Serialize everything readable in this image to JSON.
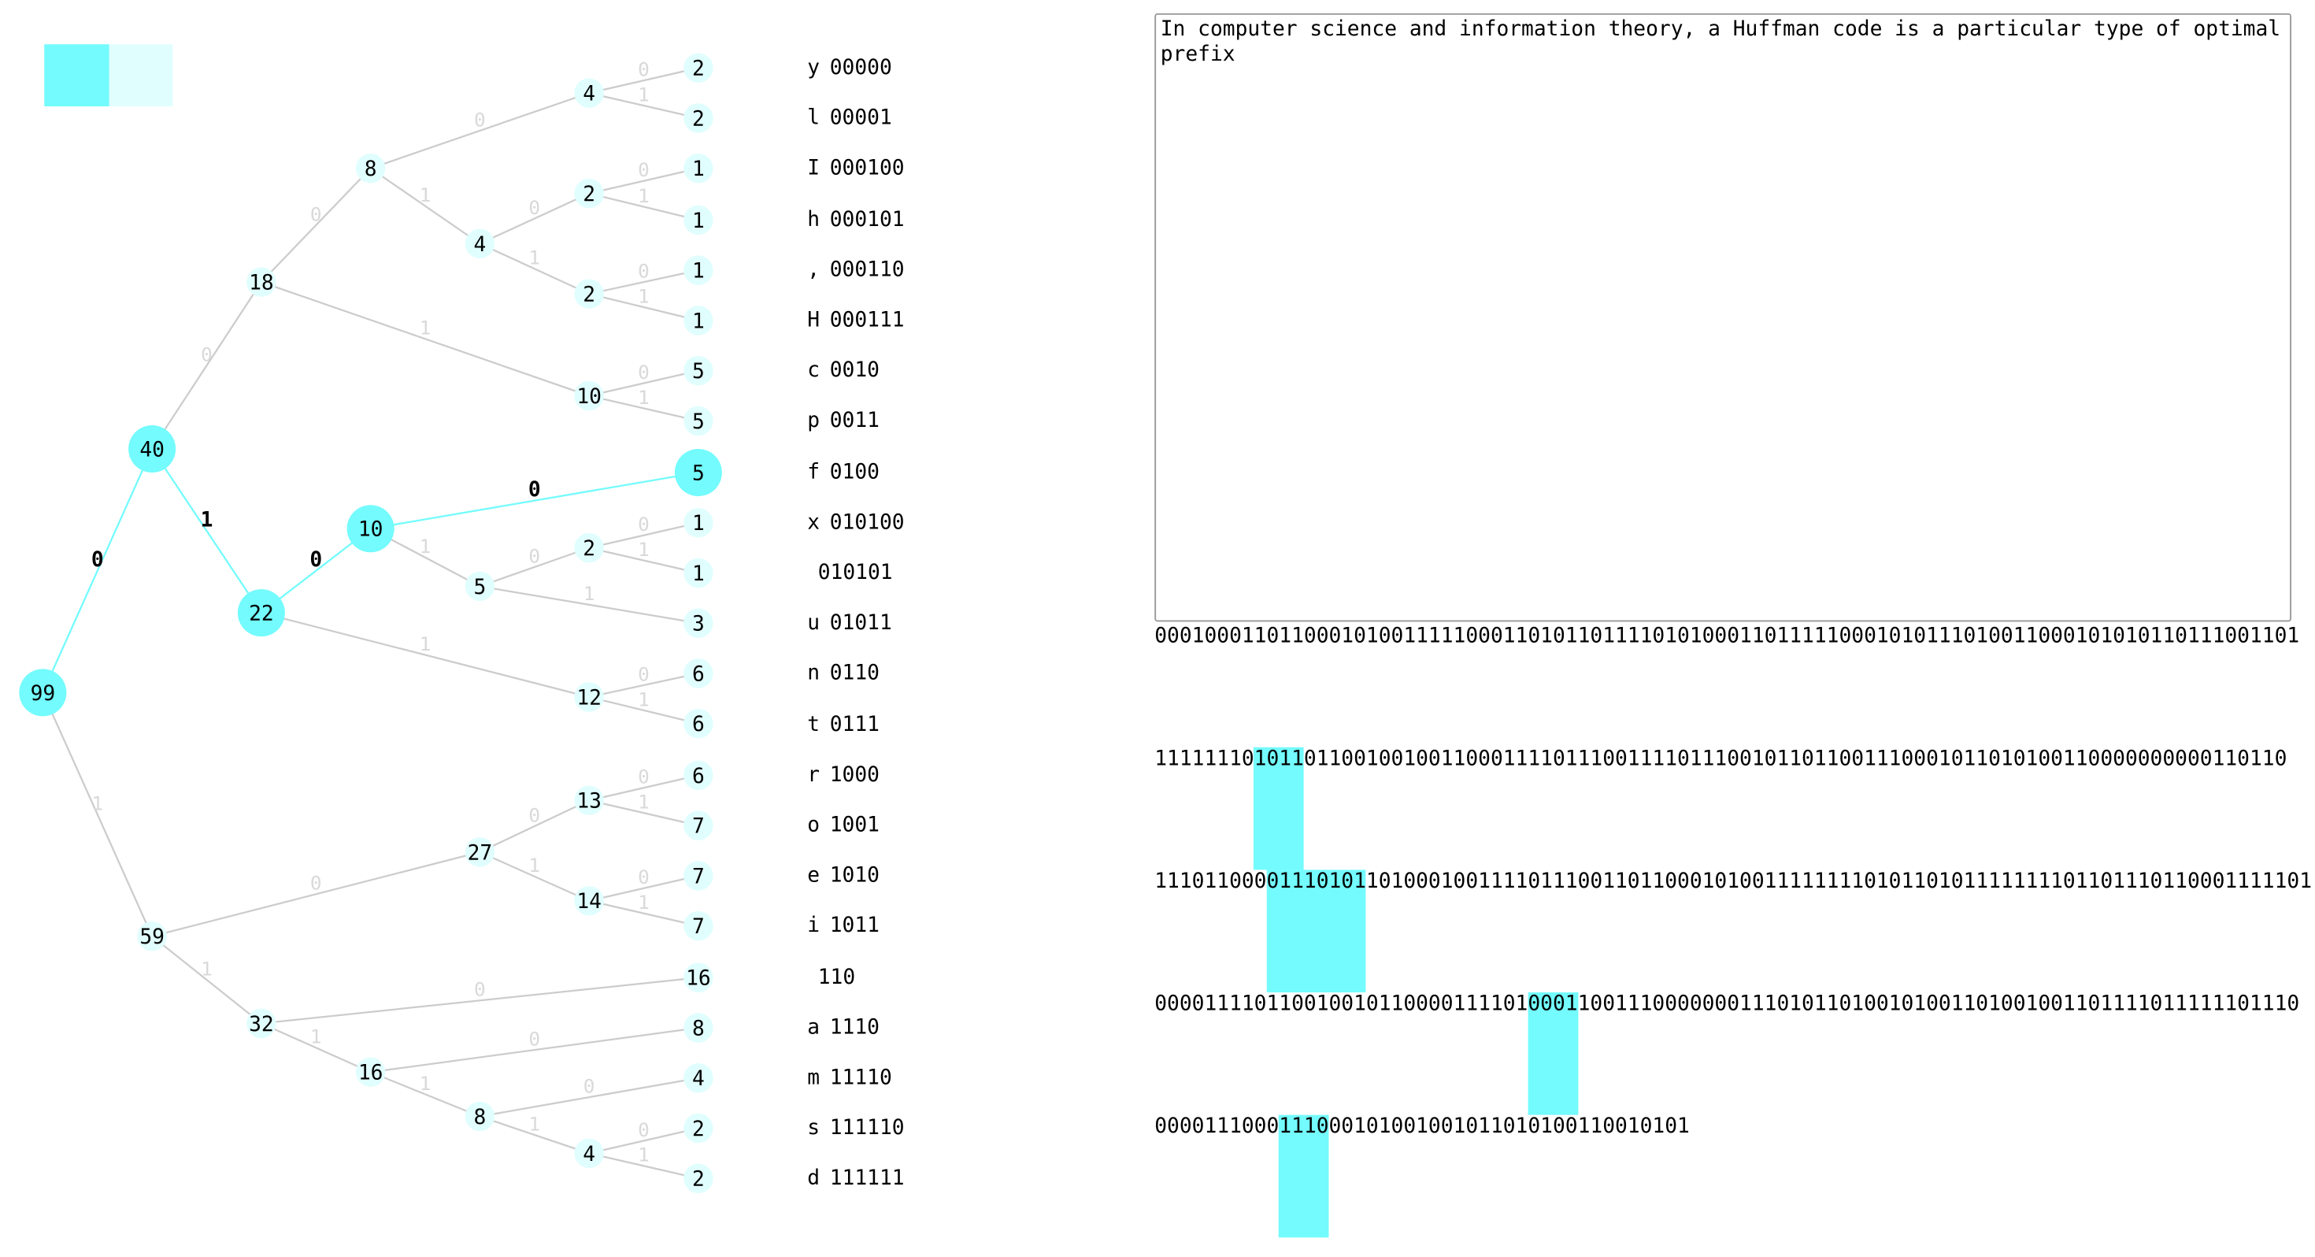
{
  "colors": {
    "accent": "#73fbfd",
    "accent_light": "#e1fefe",
    "edge_idle": "#cccccc",
    "edge_label_idle": "#d9d9d9",
    "text": "#000000"
  },
  "legend": {
    "swatches": [
      "#73fbfd",
      "#e1fefe"
    ]
  },
  "tree": {
    "nodes": [
      {
        "id": "n99",
        "label": "99",
        "active": true
      },
      {
        "id": "n40",
        "label": "40",
        "active": true
      },
      {
        "id": "n59",
        "label": "59",
        "active": false
      },
      {
        "id": "n18",
        "label": "18",
        "active": false
      },
      {
        "id": "n22",
        "label": "22",
        "active": true
      },
      {
        "id": "n8a",
        "label": "8",
        "active": false
      },
      {
        "id": "n10a",
        "label": "10",
        "active": false
      },
      {
        "id": "n10b",
        "label": "10",
        "active": true
      },
      {
        "id": "n12",
        "label": "12",
        "active": false
      },
      {
        "id": "n4a",
        "label": "4",
        "active": false
      },
      {
        "id": "n4b",
        "label": "4",
        "active": false
      },
      {
        "id": "n2a",
        "label": "2",
        "active": false
      },
      {
        "id": "n2b",
        "label": "2",
        "active": false
      },
      {
        "id": "n5a",
        "label": "5",
        "active": false
      },
      {
        "id": "n2c",
        "label": "2",
        "active": false
      },
      {
        "id": "n27",
        "label": "27",
        "active": false
      },
      {
        "id": "n32",
        "label": "32",
        "active": false
      },
      {
        "id": "n13",
        "label": "13",
        "active": false
      },
      {
        "id": "n14",
        "label": "14",
        "active": false
      },
      {
        "id": "n16a",
        "label": "16",
        "active": false
      },
      {
        "id": "n8b",
        "label": "8",
        "active": false
      },
      {
        "id": "n4c",
        "label": "4",
        "active": false
      },
      {
        "id": "l_y",
        "label": "2",
        "active": false
      },
      {
        "id": "l_l",
        "label": "2",
        "active": false
      },
      {
        "id": "l_I",
        "label": "1",
        "active": false
      },
      {
        "id": "l_h",
        "label": "1",
        "active": false
      },
      {
        "id": "l_comma",
        "label": "1",
        "active": false
      },
      {
        "id": "l_H",
        "label": "1",
        "active": false
      },
      {
        "id": "l_c",
        "label": "5",
        "active": false
      },
      {
        "id": "l_p",
        "label": "5",
        "active": false
      },
      {
        "id": "l_f",
        "label": "5",
        "active": true
      },
      {
        "id": "l_x",
        "label": "1",
        "active": false
      },
      {
        "id": "l_k",
        "label": "1",
        "active": false
      },
      {
        "id": "l_u",
        "label": "3",
        "active": false
      },
      {
        "id": "l_n",
        "label": "6",
        "active": false
      },
      {
        "id": "l_t",
        "label": "6",
        "active": false
      },
      {
        "id": "l_r",
        "label": "6",
        "active": false
      },
      {
        "id": "l_o",
        "label": "7",
        "active": false
      },
      {
        "id": "l_e",
        "label": "7",
        "active": false
      },
      {
        "id": "l_i",
        "label": "7",
        "active": false
      },
      {
        "id": "l_sp",
        "label": "16",
        "active": false
      },
      {
        "id": "l_a",
        "label": "8",
        "active": false
      },
      {
        "id": "l_m",
        "label": "4",
        "active": false
      },
      {
        "id": "l_s",
        "label": "2",
        "active": false
      },
      {
        "id": "l_d",
        "label": "2",
        "active": false
      }
    ],
    "edges": [
      {
        "from": "n99",
        "to": "n40",
        "bit": "0",
        "active": true
      },
      {
        "from": "n99",
        "to": "n59",
        "bit": "1",
        "active": false
      },
      {
        "from": "n40",
        "to": "n18",
        "bit": "0",
        "active": false
      },
      {
        "from": "n40",
        "to": "n22",
        "bit": "1",
        "active": true
      },
      {
        "from": "n18",
        "to": "n8a",
        "bit": "0",
        "active": false
      },
      {
        "from": "n18",
        "to": "n10a",
        "bit": "1",
        "active": false
      },
      {
        "from": "n8a",
        "to": "n4a",
        "bit": "0",
        "active": false
      },
      {
        "from": "n8a",
        "to": "n4b",
        "bit": "1",
        "active": false
      },
      {
        "from": "n4a",
        "to": "l_y",
        "bit": "0",
        "active": false
      },
      {
        "from": "n4a",
        "to": "l_l",
        "bit": "1",
        "active": false
      },
      {
        "from": "n4b",
        "to": "n2a",
        "bit": "0",
        "active": false
      },
      {
        "from": "n4b",
        "to": "n2b",
        "bit": "1",
        "active": false
      },
      {
        "from": "n2a",
        "to": "l_I",
        "bit": "0",
        "active": false
      },
      {
        "from": "n2a",
        "to": "l_h",
        "bit": "1",
        "active": false
      },
      {
        "from": "n2b",
        "to": "l_comma",
        "bit": "0",
        "active": false
      },
      {
        "from": "n2b",
        "to": "l_H",
        "bit": "1",
        "active": false
      },
      {
        "from": "n10a",
        "to": "l_c",
        "bit": "0",
        "active": false
      },
      {
        "from": "n10a",
        "to": "l_p",
        "bit": "1",
        "active": false
      },
      {
        "from": "n22",
        "to": "n10b",
        "bit": "0",
        "active": true
      },
      {
        "from": "n22",
        "to": "n12",
        "bit": "1",
        "active": false
      },
      {
        "from": "n10b",
        "to": "l_f",
        "bit": "0",
        "active": true
      },
      {
        "from": "n10b",
        "to": "n5a",
        "bit": "1",
        "active": false
      },
      {
        "from": "n5a",
        "to": "n2c",
        "bit": "0",
        "active": false
      },
      {
        "from": "n5a",
        "to": "l_u",
        "bit": "1",
        "active": false
      },
      {
        "from": "n2c",
        "to": "l_x",
        "bit": "0",
        "active": false
      },
      {
        "from": "n2c",
        "to": "l_k",
        "bit": "1",
        "active": false
      },
      {
        "from": "n12",
        "to": "l_n",
        "bit": "0",
        "active": false
      },
      {
        "from": "n12",
        "to": "l_t",
        "bit": "1",
        "active": false
      },
      {
        "from": "n59",
        "to": "n27",
        "bit": "0",
        "active": false
      },
      {
        "from": "n59",
        "to": "n32",
        "bit": "1",
        "active": false
      },
      {
        "from": "n27",
        "to": "n13",
        "bit": "0",
        "active": false
      },
      {
        "from": "n27",
        "to": "n14",
        "bit": "1",
        "active": false
      },
      {
        "from": "n13",
        "to": "l_r",
        "bit": "0",
        "active": false
      },
      {
        "from": "n13",
        "to": "l_o",
        "bit": "1",
        "active": false
      },
      {
        "from": "n14",
        "to": "l_e",
        "bit": "0",
        "active": false
      },
      {
        "from": "n14",
        "to": "l_i",
        "bit": "1",
        "active": false
      },
      {
        "from": "n32",
        "to": "l_sp",
        "bit": "0",
        "active": false
      },
      {
        "from": "n32",
        "to": "n16a",
        "bit": "1",
        "active": false
      },
      {
        "from": "n16a",
        "to": "l_a",
        "bit": "0",
        "active": false
      },
      {
        "from": "n16a",
        "to": "n8b",
        "bit": "1",
        "active": false
      },
      {
        "from": "n8b",
        "to": "l_m",
        "bit": "0",
        "active": false
      },
      {
        "from": "n8b",
        "to": "n4c",
        "bit": "1",
        "active": false
      },
      {
        "from": "n4c",
        "to": "l_s",
        "bit": "0",
        "active": false
      },
      {
        "from": "n4c",
        "to": "l_d",
        "bit": "1",
        "active": false
      }
    ]
  },
  "code_table": [
    {
      "char": "y",
      "code": "00000"
    },
    {
      "char": "l",
      "code": "00001"
    },
    {
      "char": "I",
      "code": "000100"
    },
    {
      "char": "h",
      "code": "000101"
    },
    {
      "char": ",",
      "code": "000110"
    },
    {
      "char": "H",
      "code": "000111"
    },
    {
      "char": "c",
      "code": "0010"
    },
    {
      "char": "p",
      "code": "0011"
    },
    {
      "char": "f",
      "code": "0100"
    },
    {
      "char": "x",
      "code": "010100"
    },
    {
      "char": "",
      "code": "010101"
    },
    {
      "char": "u",
      "code": "01011"
    },
    {
      "char": "n",
      "code": "0110"
    },
    {
      "char": "t",
      "code": "0111"
    },
    {
      "char": "r",
      "code": "1000"
    },
    {
      "char": "o",
      "code": "1001"
    },
    {
      "char": "e",
      "code": "1010"
    },
    {
      "char": "i",
      "code": "1011"
    },
    {
      "char": "",
      "code": "110"
    },
    {
      "char": "a",
      "code": "1110"
    },
    {
      "char": "m",
      "code": "11110"
    },
    {
      "char": "s",
      "code": "111110"
    },
    {
      "char": "d",
      "code": "111111"
    }
  ],
  "input_text": "In computer science and information theory, a Huffman code is a particular type of optimal prefix",
  "encoded_lines": [
    "0001000110110001010011111000110101101111010100011011111000101011101001100010101011011100110 1",
    "1111111010110110010010011000111101110011110111001011011001110001011010100110000000000110110",
    "11101100001110101101000100111101110011011000101001111111101011010111111110110111011000111110 1",
    "00001111011001001011000011110100011001110000000111010110100101001101001001101111011111101110",
    "0000111000111000101001001011010100110010101"
  ],
  "highlights": [
    {
      "line": 1,
      "start": 8,
      "length": 2
    },
    {
      "line": 2,
      "start": 9,
      "length": 4
    },
    {
      "line": 3,
      "start": 30,
      "length": 2
    },
    {
      "line": 4,
      "start": 10,
      "length": 2
    }
  ]
}
